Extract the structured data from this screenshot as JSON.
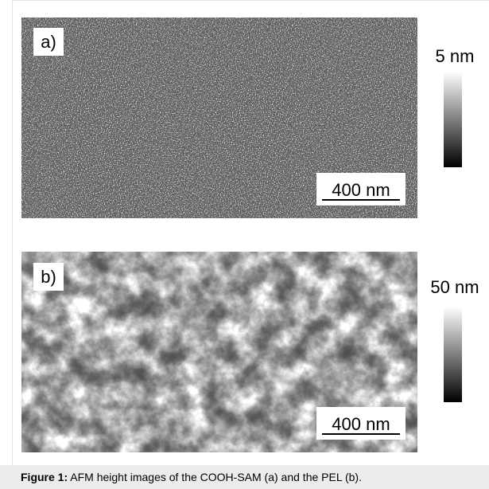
{
  "panels": [
    {
      "label": "a)",
      "scale_bar": "400 nm",
      "colorbar_max": "5 nm"
    },
    {
      "label": "b)",
      "scale_bar": "400 nm",
      "colorbar_max": "50 nm"
    }
  ],
  "caption": {
    "label": "Figure 1:",
    "text": "AFM height images of the COOH-SAM (a) and the PEL (b)."
  }
}
